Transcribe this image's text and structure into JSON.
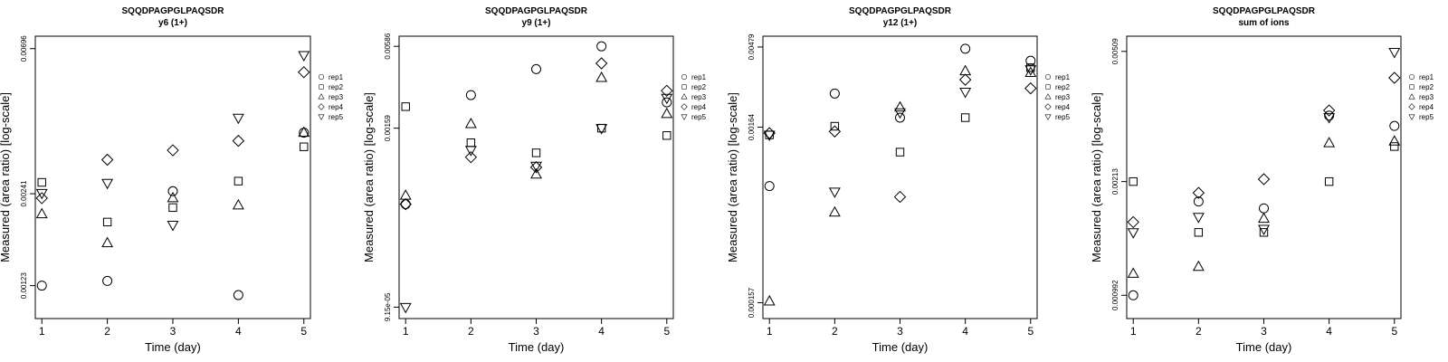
{
  "figure": {
    "background": "#ffffff",
    "ink": "#000000"
  },
  "chart_data": [
    {
      "type": "scatter",
      "title": "SQQDPAGPGLPAQSDR",
      "subtitle": "y6 (1+)",
      "xlabel": "Time (day)",
      "ylabel": "Measured (area ratio) [log-scale]",
      "x": [
        1,
        2,
        3,
        4,
        5
      ],
      "xticks": [
        "1",
        "2",
        "3",
        "4",
        "5"
      ],
      "xlim": [
        0.9,
        5.1
      ],
      "ylog": [
        -3.0146,
        -2.1176
      ],
      "yticks": [
        {
          "label": "0.00123",
          "log": -2.91
        },
        {
          "label": "0.00241",
          "log": -2.618
        },
        {
          "label": "0.00696",
          "log": -2.157
        }
      ],
      "legend": "right",
      "series": [
        {
          "name": "rep1",
          "marker": "circle",
          "values": [
            -2.91,
            -2.895,
            -2.61,
            -2.94,
            -2.424
          ]
        },
        {
          "name": "rep2",
          "marker": "square",
          "values": [
            -2.582,
            -2.708,
            -2.662,
            -2.578,
            -2.469
          ]
        },
        {
          "name": "rep3",
          "marker": "triangle-up",
          "values": [
            -2.683,
            -2.775,
            -2.632,
            -2.655,
            -2.424
          ]
        },
        {
          "name": "rep4",
          "marker": "diamond",
          "values": [
            -2.632,
            -2.51,
            -2.48,
            -2.45,
            -2.232
          ]
        },
        {
          "name": "rep5",
          "marker": "triangle-down",
          "values": [
            -2.616,
            -2.584,
            -2.717,
            -2.377,
            -2.178
          ]
        }
      ]
    },
    {
      "type": "scatter",
      "title": "SQQDPAGPGLPAQSDR",
      "subtitle": "y9 (1+)",
      "xlabel": "Time (day)",
      "ylabel": "Measured (area ratio) [log-scale]",
      "x": [
        1,
        2,
        3,
        4,
        5
      ],
      "xticks": [
        "1",
        "2",
        "3",
        "4",
        "5"
      ],
      "xlim": [
        0.9,
        5.1
      ],
      "ylog": [
        -4.1181,
        -2.1619
      ],
      "yticks": [
        {
          "label": "9.15e-05",
          "log": -4.039
        },
        {
          "label": "0.00159",
          "log": -2.799
        },
        {
          "label": "0.00586",
          "log": -2.232
        }
      ],
      "legend": "right",
      "series": [
        {
          "name": "rep1",
          "marker": "circle",
          "values": [
            -3.326,
            -2.57,
            -2.39,
            -2.232,
            -2.62
          ]
        },
        {
          "name": "rep2",
          "marker": "square",
          "values": [
            -2.65,
            -2.9,
            -2.97,
            -2.799,
            -2.85
          ]
        },
        {
          "name": "rep3",
          "marker": "triangle-up",
          "values": [
            -3.266,
            -2.77,
            -3.12,
            -2.45,
            -2.7
          ]
        },
        {
          "name": "rep4",
          "marker": "diamond",
          "values": [
            -3.326,
            -3.0,
            -3.07,
            -2.35,
            -2.54
          ]
        },
        {
          "name": "rep5",
          "marker": "triangle-down",
          "values": [
            -4.039,
            -2.95,
            -3.06,
            -2.799,
            -2.59
          ]
        }
      ]
    },
    {
      "type": "scatter",
      "title": "SQQDPAGPGLPAQSDR",
      "subtitle": "y12 (1+)",
      "xlabel": "Time (day)",
      "ylabel": "Measured (area ratio) [log-scale]",
      "x": [
        1,
        2,
        3,
        4,
        5
      ],
      "xticks": [
        "1",
        "2",
        "3",
        "4",
        "5"
      ],
      "xlim": [
        0.9,
        5.1
      ],
      "ylog": [
        -3.896,
        -2.2573
      ],
      "yticks": [
        {
          "label": "0.000157",
          "log": -3.804
        },
        {
          "label": "0.00164",
          "log": -2.785
        },
        {
          "label": "0.00479",
          "log": -2.32
        }
      ],
      "legend": "right",
      "series": [
        {
          "name": "rep1",
          "marker": "circle",
          "values": [
            -3.127,
            -2.59,
            -2.73,
            -2.33,
            -2.4
          ]
        },
        {
          "name": "rep2",
          "marker": "square",
          "values": [
            -2.83,
            -2.78,
            -2.93,
            -2.73,
            -2.44
          ]
        },
        {
          "name": "rep3",
          "marker": "triangle-up",
          "values": [
            -3.796,
            -3.28,
            -2.67,
            -2.46,
            -2.47
          ]
        },
        {
          "name": "rep4",
          "marker": "diamond",
          "values": [
            -2.82,
            -2.81,
            -3.19,
            -2.51,
            -2.56
          ]
        },
        {
          "name": "rep5",
          "marker": "triangle-down",
          "values": [
            -2.83,
            -3.16,
            -2.7,
            -2.58,
            -2.45
          ]
        }
      ]
    },
    {
      "type": "scatter",
      "title": "SQQDPAGPGLPAQSDR",
      "subtitle": "sum of ions",
      "xlabel": "Time (day)",
      "ylabel": "Measured (area ratio) [log-scale]",
      "x": [
        1,
        2,
        3,
        4,
        5
      ],
      "xticks": [
        "1",
        "2",
        "3",
        "4",
        "5"
      ],
      "xlim": [
        0.9,
        5.1
      ],
      "ylog": [
        -3.0708,
        -2.2488
      ],
      "yticks": [
        {
          "label": "0.000992",
          "log": -3.003
        },
        {
          "label": "0.00213",
          "log": -2.672
        },
        {
          "label": "0.00509",
          "log": -2.293
        }
      ],
      "legend": "right",
      "series": [
        {
          "name": "rep1",
          "marker": "circle",
          "values": [
            -3.003,
            -2.73,
            -2.75,
            -2.48,
            -2.51
          ]
        },
        {
          "name": "rep2",
          "marker": "square",
          "values": [
            -2.672,
            -2.82,
            -2.82,
            -2.672,
            -2.57
          ]
        },
        {
          "name": "rep3",
          "marker": "triangle-up",
          "values": [
            -2.94,
            -2.92,
            -2.78,
            -2.56,
            -2.555
          ]
        },
        {
          "name": "rep4",
          "marker": "diamond",
          "values": [
            -2.79,
            -2.705,
            -2.665,
            -2.465,
            -2.37
          ]
        },
        {
          "name": "rep5",
          "marker": "triangle-down",
          "values": [
            -2.82,
            -2.775,
            -2.81,
            -2.485,
            -2.295
          ]
        }
      ]
    }
  ]
}
